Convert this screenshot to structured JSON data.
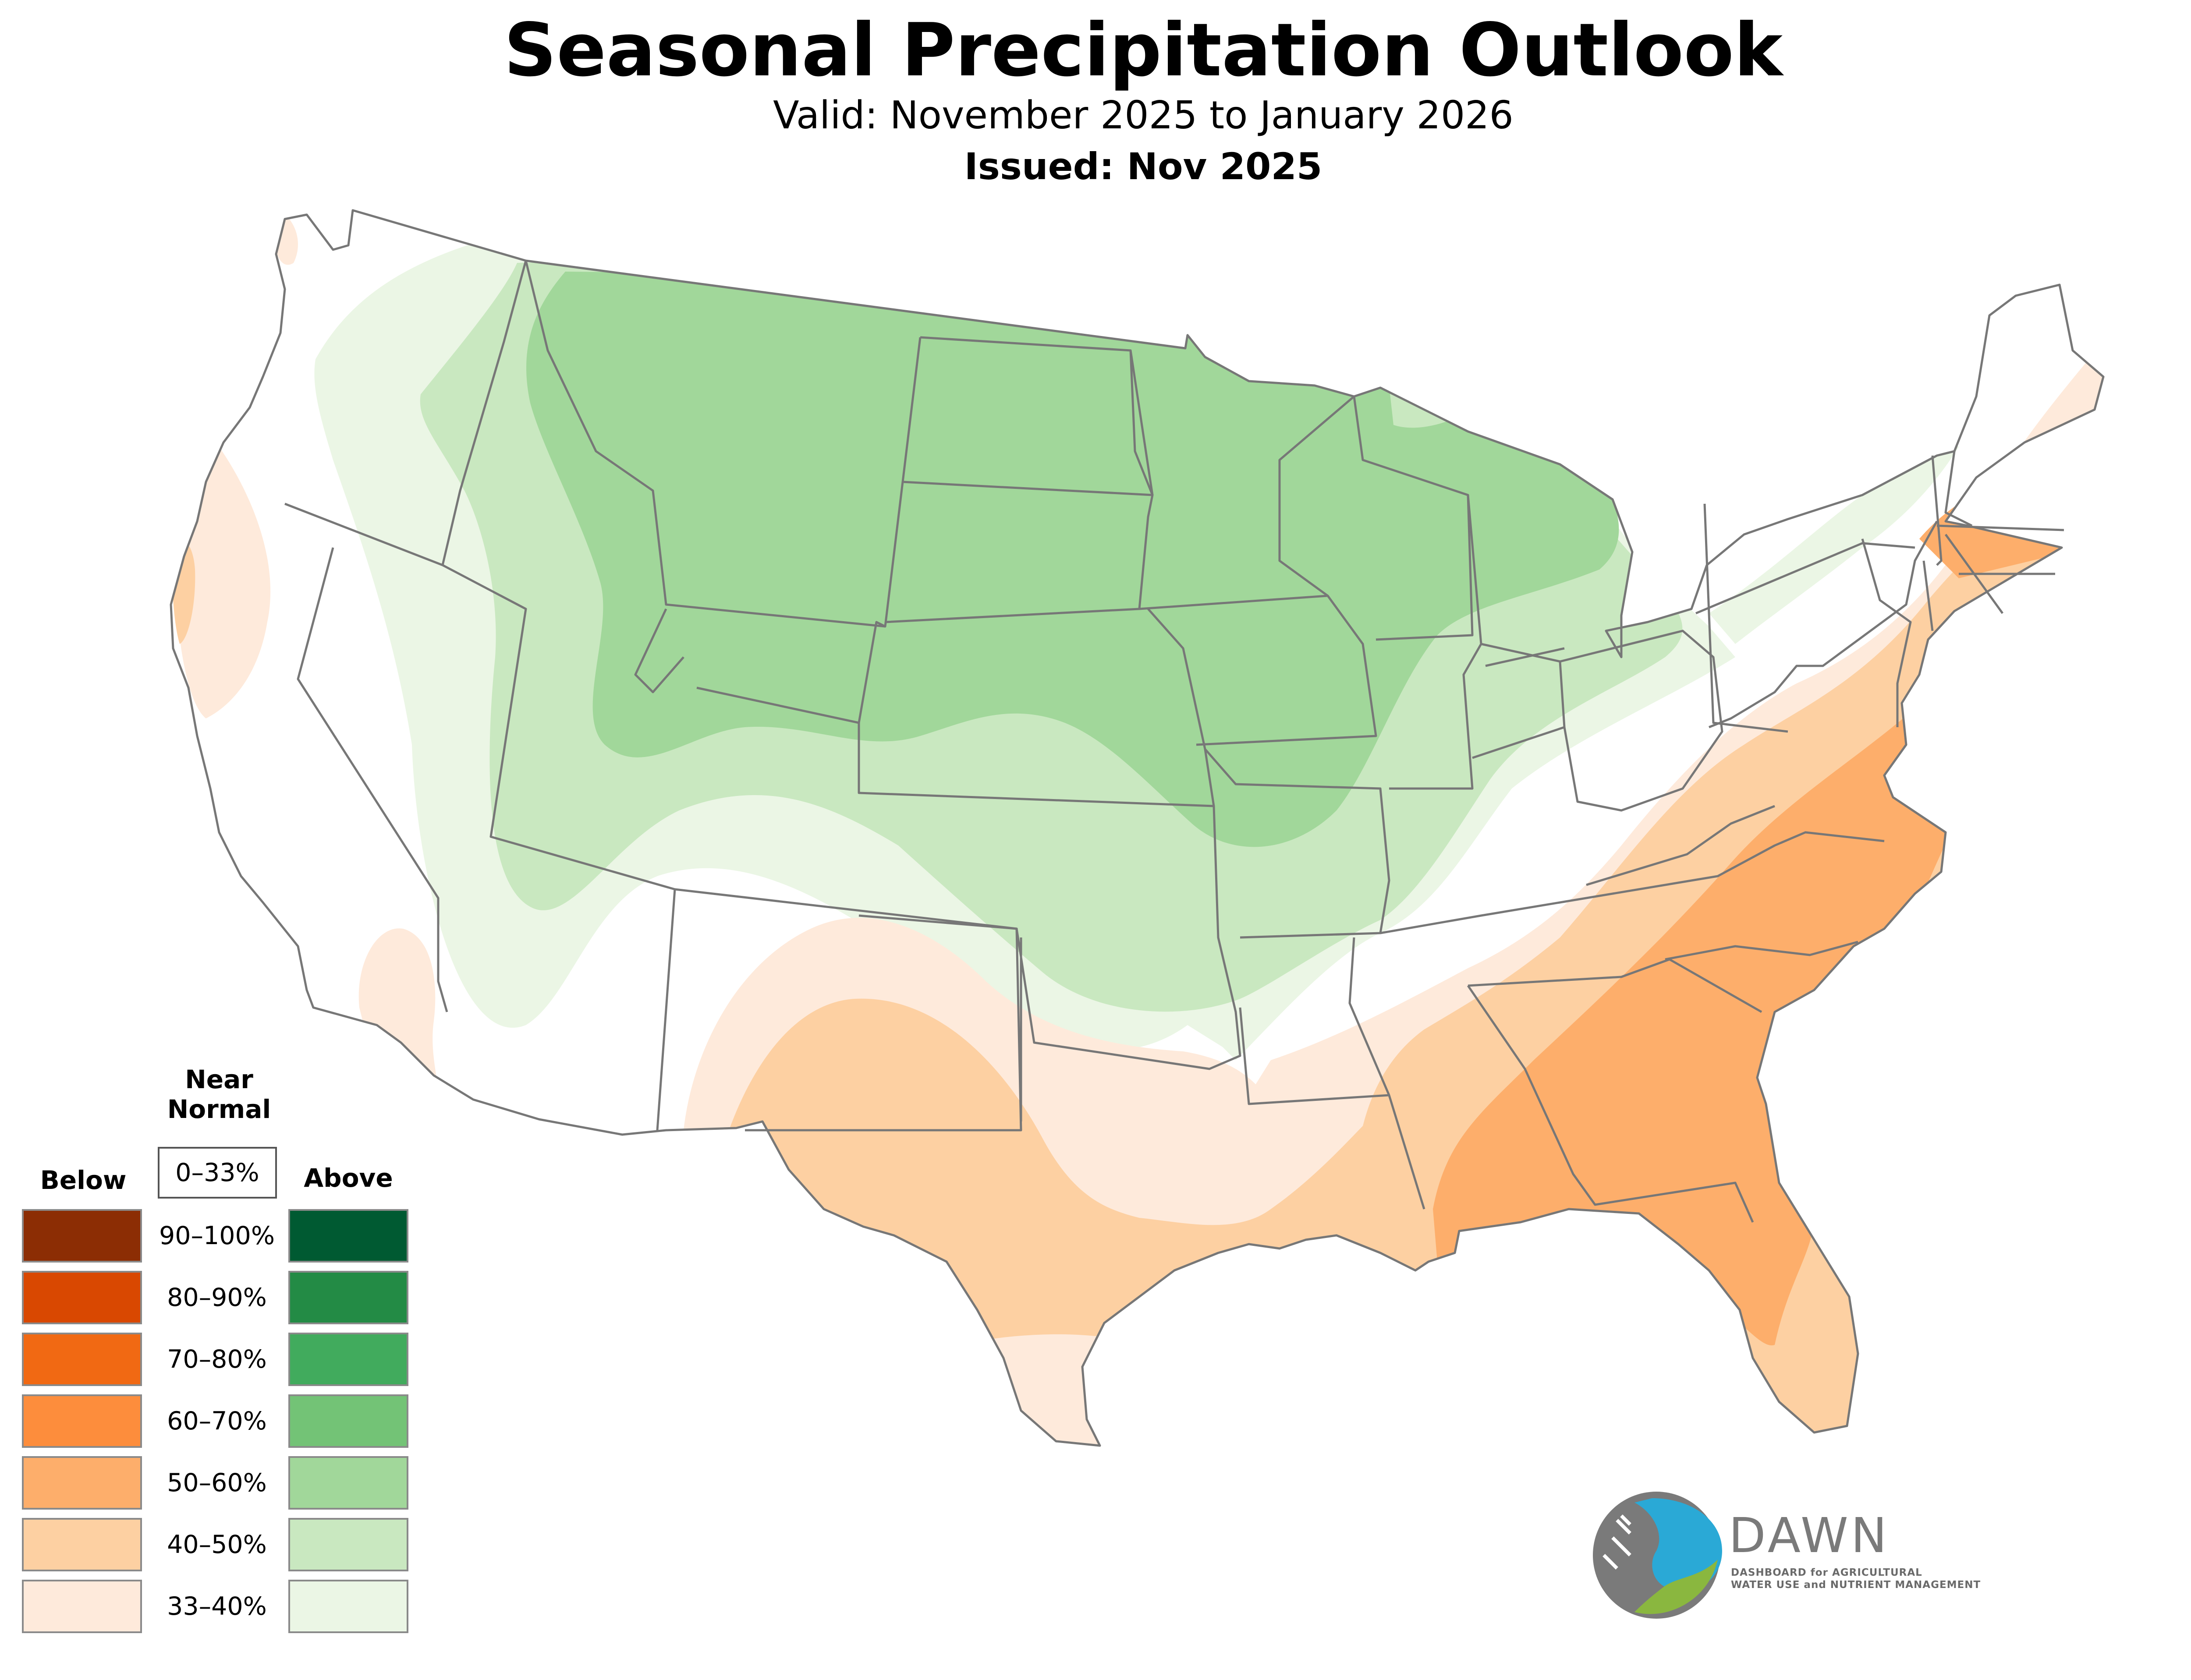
{
  "header": {
    "title": "Seasonal Precipitation Outlook",
    "valid": "Valid: November 2025 to January 2026",
    "issued": "Issued: Nov 2025"
  },
  "colors": {
    "border": "#777777",
    "above": [
      "#ebf6e5",
      "#c9e8c0",
      "#a1d79a",
      "#73c376",
      "#41ab5d",
      "#238b45",
      "#005a32"
    ],
    "below": [
      "#feeadb",
      "#fdd0a2",
      "#fdae6b",
      "#fd8d3c",
      "#f16913",
      "#d94801",
      "#8c2d04"
    ]
  },
  "legend": {
    "near_normal_heading": "Near\nNormal",
    "near_normal_range": "0–33%",
    "below_heading": "Below",
    "above_heading": "Above",
    "rows": [
      {
        "label": "90–100%",
        "below": "#8c2d04",
        "above": "#005a32"
      },
      {
        "label": "80–90%",
        "below": "#d94801",
        "above": "#238b45"
      },
      {
        "label": "70–80%",
        "below": "#f16913",
        "above": "#41ab5d"
      },
      {
        "label": "60–70%",
        "below": "#fd8d3c",
        "above": "#73c376"
      },
      {
        "label": "50–60%",
        "below": "#fdae6b",
        "above": "#a1d79a"
      },
      {
        "label": "40–50%",
        "below": "#fdd0a2",
        "above": "#c9e8c0"
      },
      {
        "label": "33–40%",
        "below": "#feeadb",
        "above": "#ebf6e5"
      }
    ]
  },
  "logo": {
    "name": "DAWN",
    "line1": "DASHBOARD for AGRICULTURAL",
    "line2": "WATER USE and NUTRIENT MANAGEMENT",
    "colors": {
      "blue": "#2aa9d6",
      "green": "#8ab73f",
      "gray": "#7a7a7a"
    }
  }
}
